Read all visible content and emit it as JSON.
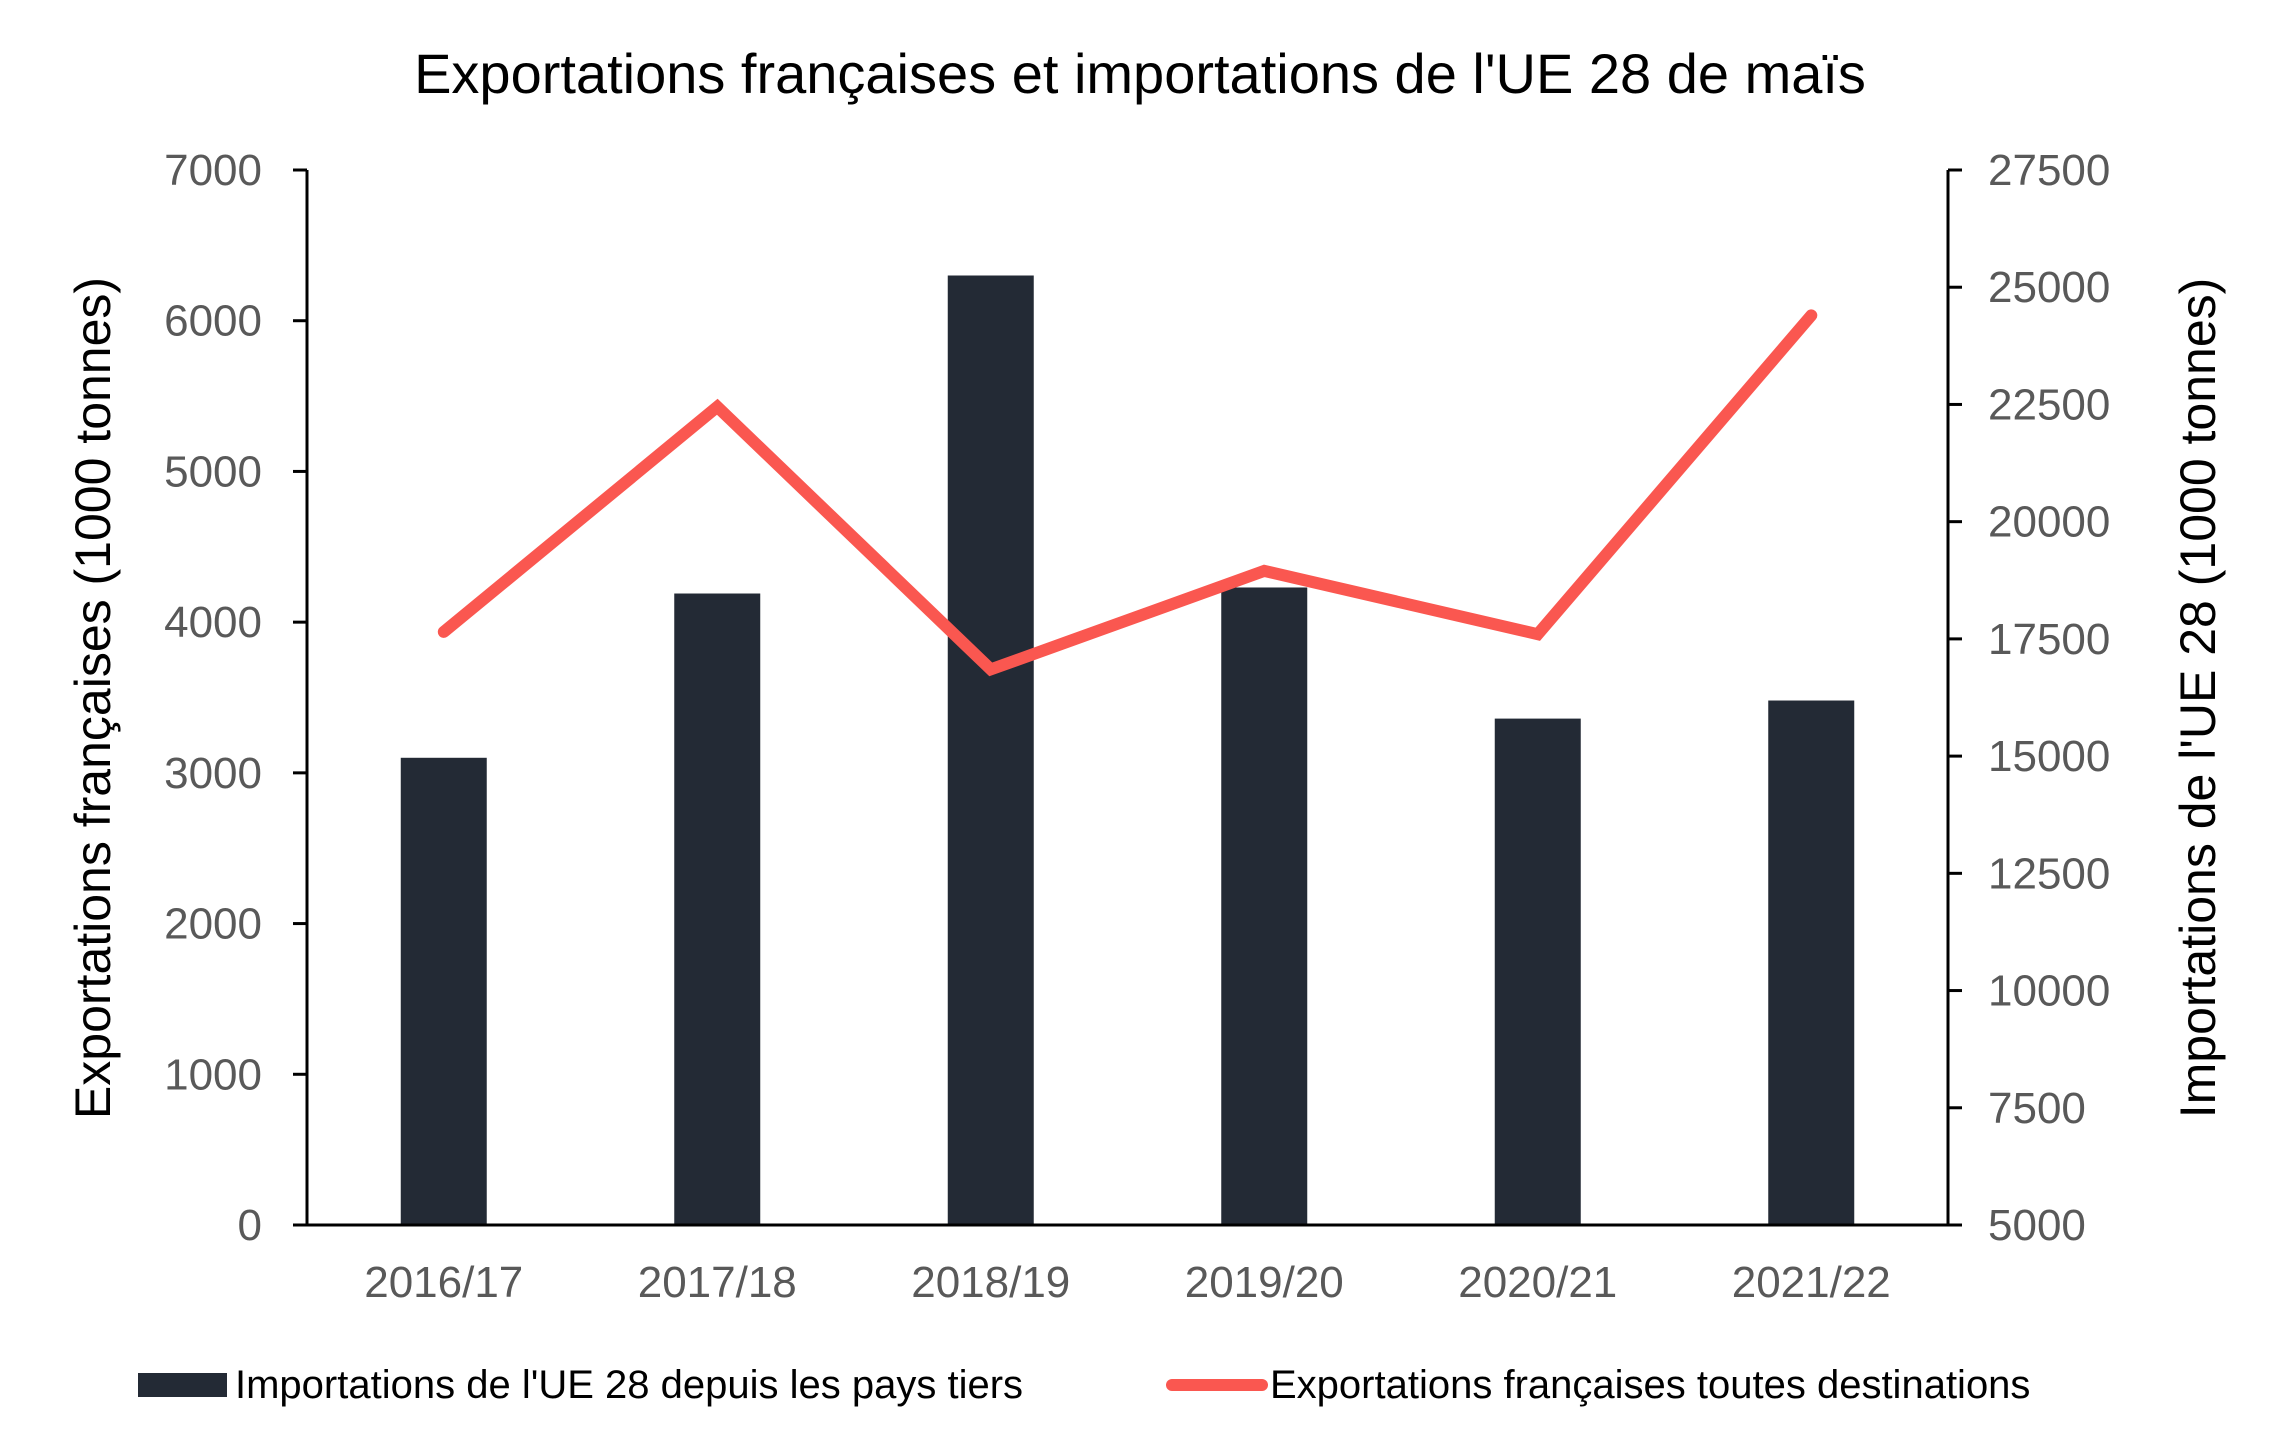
{
  "chart_data": {
    "type": "bar+line",
    "title": "Exportations françaises et importations de l'UE 28 de maïs",
    "categories": [
      "2016/17",
      "2017/18",
      "2018/19",
      "2019/20",
      "2020/21",
      "2021/22"
    ],
    "y_left": {
      "label": "Exportations françaises (1000 tonnes)",
      "range": [
        0,
        7000
      ],
      "ticks": [
        "0",
        "1000",
        "2000",
        "3000",
        "4000",
        "5000",
        "6000",
        "7000"
      ]
    },
    "y_right": {
      "label": "Importations de l'UE 28 (1000 tonnes)",
      "range": [
        5000,
        27500
      ],
      "ticks": [
        "5000",
        "7500",
        "10000",
        "12500",
        "15000",
        "17500",
        "20000",
        "22500",
        "25000",
        "27500"
      ]
    },
    "series": [
      {
        "name": "Importations de l'UE 28 depuis les pays tiers",
        "type": "bar",
        "axis": "left",
        "color": "#232a35",
        "values": [
          3100,
          4190,
          6300,
          4230,
          3360,
          3480
        ]
      },
      {
        "name": "Exportations françaises toutes destinations",
        "type": "line",
        "axis": "right",
        "color": "#fa5750",
        "values": [
          17650,
          22450,
          16850,
          18950,
          17600,
          24400
        ]
      }
    ],
    "grid": false,
    "legend_position": "bottom"
  }
}
